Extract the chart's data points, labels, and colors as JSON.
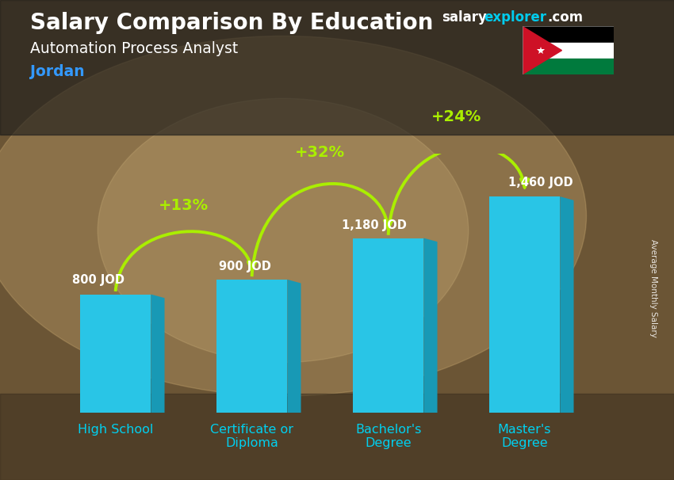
{
  "title_main": "Salary Comparison By Education",
  "title_sub": "Automation Process Analyst",
  "title_country": "Jordan",
  "categories": [
    "High School",
    "Certificate or\nDiploma",
    "Bachelor's\nDegree",
    "Master's\nDegree"
  ],
  "values": [
    800,
    900,
    1180,
    1460
  ],
  "labels": [
    "800 JOD",
    "900 JOD",
    "1,180 JOD",
    "1,460 JOD"
  ],
  "pct_labels": [
    "+13%",
    "+32%",
    "+24%"
  ],
  "bar_color_face": "#29c5e6",
  "bar_color_side": "#1899b5",
  "bar_color_top": "#55d8f0",
  "bg_color": "#7a6545",
  "text_color_white": "#ffffff",
  "text_color_country": "#3399ff",
  "text_color_pct": "#aaee00",
  "ylabel_text": "Average Monthly Salary",
  "bar_width": 0.52,
  "ylim": [
    0,
    1750
  ],
  "watermark_salary": "salary",
  "watermark_explorer": "explorer",
  "watermark_com": ".com",
  "watermark_color_main": "#ffffff",
  "watermark_color_accent": "#00ccee",
  "flag_black": "#000000",
  "flag_white": "#ffffff",
  "flag_green": "#007a3d",
  "flag_red": "#ce1126"
}
